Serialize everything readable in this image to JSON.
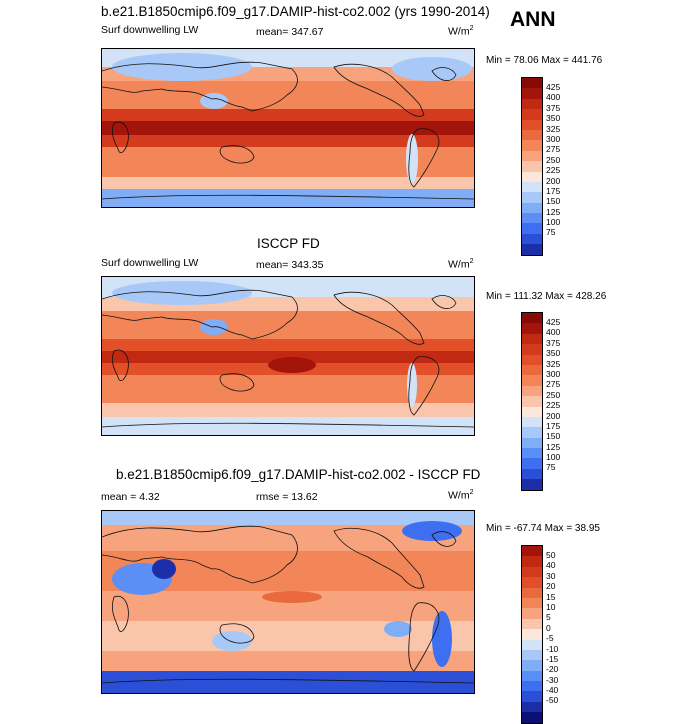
{
  "season": "ANN",
  "colors": {
    "abs": [
      "#0c1073",
      "#1c2fa8",
      "#2b4fd6",
      "#3e6ff0",
      "#5b8ff5",
      "#7fadf6",
      "#a8c9f7",
      "#d2e2f7",
      "#fbe7dc",
      "#f9c6ac",
      "#f7a37d",
      "#f28659",
      "#eb6a3d",
      "#e2502a",
      "#d43b1e",
      "#c12912",
      "#a3150a",
      "#860b06"
    ],
    "diff": [
      "#0c1073",
      "#1c2fa8",
      "#2b4fd6",
      "#3e6ff0",
      "#5b8ff5",
      "#7fadf6",
      "#a8c9f7",
      "#d2e2f7",
      "#fbe7dc",
      "#f9c6ac",
      "#f7a37d",
      "#f28659",
      "#eb6a3d",
      "#e2502a",
      "#d43b1e",
      "#c12912",
      "#a3150a"
    ]
  },
  "chart_data": [
    {
      "type": "heatmap",
      "title": "b.e21.B1850cmip6.f09_g17.DAMIP-hist-co2.002 (yrs 1990-2014)",
      "variable": "Surf downwelling LW",
      "mean_label": "mean= 347.67",
      "units": "W/m",
      "minmax": "Min =  78.06 Max = 441.76",
      "levels": [
        "425",
        "400",
        "375",
        "350",
        "325",
        "300",
        "275",
        "250",
        "225",
        "200",
        "175",
        "150",
        "125",
        "100",
        "75"
      ],
      "projection": "cylindrical equidistant, global, Pacific-centered"
    },
    {
      "type": "heatmap",
      "title": "ISCCP FD",
      "variable": "Surf downwelling LW",
      "mean_label": "mean= 343.35",
      "units": "W/m",
      "minmax": "Min = 111.32 Max = 428.26",
      "levels": [
        "425",
        "400",
        "375",
        "350",
        "325",
        "300",
        "275",
        "250",
        "225",
        "200",
        "175",
        "150",
        "125",
        "100",
        "75"
      ],
      "projection": "cylindrical equidistant, global, Pacific-centered"
    },
    {
      "type": "heatmap",
      "title": "b.e21.B1850cmip6.f09_g17.DAMIP-hist-co2.002 - ISCCP FD",
      "mean_label": "mean =   4.32",
      "rmse_label": "rmse =  13.62",
      "units": "W/m",
      "minmax": "Min = -67.74 Max =  38.95",
      "levels": [
        "50",
        "40",
        "30",
        "20",
        "15",
        "10",
        "5",
        "0",
        "-5",
        "-10",
        "-15",
        "-20",
        "-30",
        "-40",
        "-50"
      ],
      "projection": "cylindrical equidistant, global, Pacific-centered"
    }
  ]
}
